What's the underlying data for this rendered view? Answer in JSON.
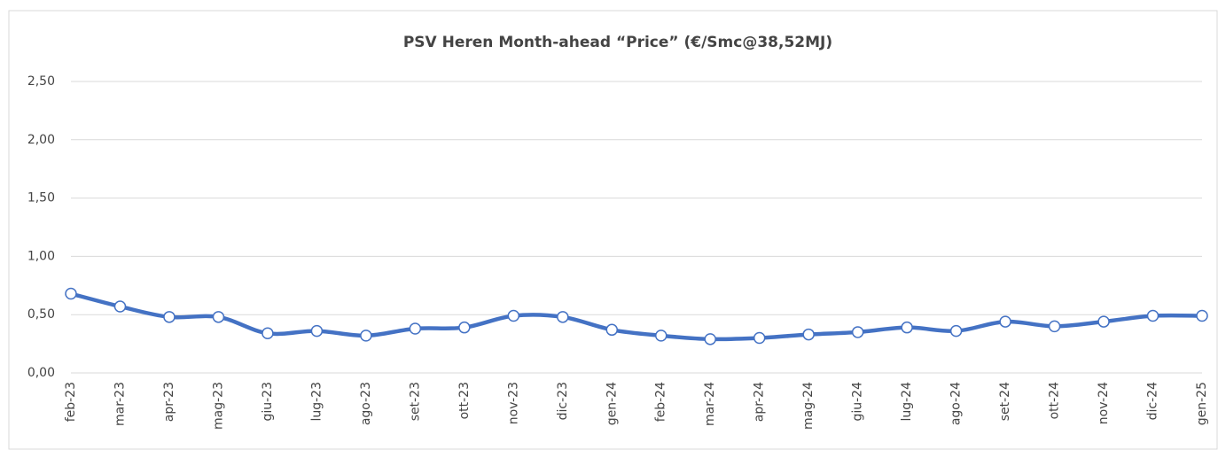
{
  "chart_data": {
    "type": "line",
    "title": "PSV Heren Month-ahead “Price” (€/Smc@38,52MJ)",
    "categories": [
      "feb-23",
      "mar-23",
      "apr-23",
      "mag-23",
      "giu-23",
      "lug-23",
      "ago-23",
      "set-23",
      "ott-23",
      "nov-23",
      "dic-23",
      "gen-24",
      "feb-24",
      "mar-24",
      "apr-24",
      "mag-24",
      "giu-24",
      "lug-24",
      "ago-24",
      "set-24",
      "ott-24",
      "nov-24",
      "dic-24",
      "gen-25"
    ],
    "series": [
      {
        "color": "#4472c4",
        "values": [
          0.68,
          0.57,
          0.48,
          0.48,
          0.34,
          0.36,
          0.32,
          0.38,
          0.39,
          0.49,
          0.48,
          0.37,
          0.32,
          0.29,
          0.3,
          0.33,
          0.35,
          0.39,
          0.36,
          0.44,
          0.4,
          0.44,
          0.49,
          0.49
        ]
      }
    ],
    "ylim": [
      0,
      2.5
    ],
    "yticks": [
      {
        "value": 0,
        "label": "0,00"
      },
      {
        "value": 0.5,
        "label": "0,50"
      },
      {
        "value": 1,
        "label": "1,00"
      },
      {
        "value": 1.5,
        "label": "1,50"
      },
      {
        "value": 2,
        "label": "2,00"
      },
      {
        "value": 2.5,
        "label": "2,50"
      }
    ],
    "grid": true
  }
}
